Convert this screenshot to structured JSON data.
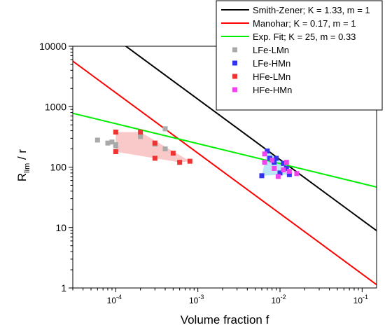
{
  "chart_data": {
    "type": "scatter",
    "xscale": "log",
    "yscale": "log",
    "xlim": [
      3e-05,
      0.15
    ],
    "ylim": [
      1,
      10000
    ],
    "xlabel": "Volume fraction f",
    "ylabel_main": "R",
    "ylabel_sub": "lim",
    "ylabel_rest": " / r",
    "grid": false,
    "legend_position": "top-right",
    "x_ticks": [
      {
        "value": 0.0001,
        "base": "10",
        "exp": "-4"
      },
      {
        "value": 0.001,
        "base": "10",
        "exp": "-3"
      },
      {
        "value": 0.01,
        "base": "10",
        "exp": "-2"
      },
      {
        "value": 0.1,
        "base": "10",
        "exp": "-1"
      }
    ],
    "y_ticks": [
      {
        "value": 1,
        "label": "1"
      },
      {
        "value": 10,
        "label": "10"
      },
      {
        "value": 100,
        "label": "100"
      },
      {
        "value": 1000,
        "label": "1000"
      },
      {
        "value": 10000,
        "label": "10000"
      }
    ],
    "lines": [
      {
        "name": "Smith-Zener; K = 1.33, m = 1",
        "color": "#000000",
        "K": 1.33,
        "m": 1
      },
      {
        "name": "Manohar; K = 0.17, m = 1",
        "color": "#ff0000",
        "K": 0.17,
        "m": 1
      },
      {
        "name": "Exp. Fit; K = 25, m = 0.33",
        "color": "#00ee00",
        "K": 25,
        "m": 0.33
      }
    ],
    "series": [
      {
        "name": "LFe-LMn",
        "color": "#a9a9a9",
        "region_fill": "",
        "points": [
          [
            6e-05,
            280
          ],
          [
            8e-05,
            250
          ],
          [
            9e-05,
            260
          ],
          [
            0.0001,
            235
          ],
          [
            0.0001,
            225
          ],
          [
            0.0002,
            320
          ],
          [
            0.0004,
            430
          ],
          [
            0.0004,
            200
          ],
          [
            0.0003,
            240
          ]
        ]
      },
      {
        "name": "LFe-HMn",
        "color": "#3333ee",
        "region_fill": "#a6dff0",
        "points": [
          [
            0.006,
            72
          ],
          [
            0.007,
            185
          ],
          [
            0.0075,
            140
          ],
          [
            0.0085,
            120
          ],
          [
            0.009,
            140
          ],
          [
            0.01,
            80
          ],
          [
            0.011,
            115
          ],
          [
            0.012,
            95
          ],
          [
            0.013,
            75
          ]
        ]
      },
      {
        "name": "HFe-LMn",
        "color": "#ee3333",
        "region_fill": "#f7b6b6",
        "points": [
          [
            0.0001,
            380
          ],
          [
            0.0001,
            180
          ],
          [
            0.0002,
            380
          ],
          [
            0.0003,
            140
          ],
          [
            0.0003,
            250
          ],
          [
            0.0005,
            170
          ],
          [
            0.0006,
            120
          ],
          [
            0.0008,
            125
          ]
        ]
      },
      {
        "name": "HFe-HMn",
        "color": "#ee44ee",
        "region_fill": "",
        "points": [
          [
            0.0065,
            165
          ],
          [
            0.0065,
            120
          ],
          [
            0.008,
            130
          ],
          [
            0.0085,
            95
          ],
          [
            0.0095,
            70
          ],
          [
            0.011,
            90
          ],
          [
            0.012,
            120
          ],
          [
            0.013,
            85
          ],
          [
            0.016,
            78
          ]
        ]
      }
    ]
  }
}
